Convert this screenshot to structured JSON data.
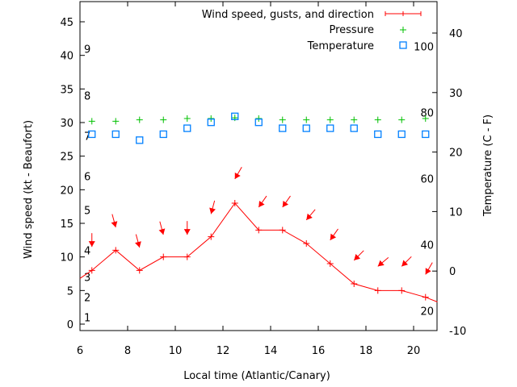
{
  "chart_data": {
    "type": "line",
    "xlabel": "Local time (Atlantic/Canary)",
    "ylabel": "Wind speed (kt - Beaufort)",
    "y2label": "Temperature (C - F)",
    "xlim": [
      6,
      21
    ],
    "ylim": [
      0,
      48
    ],
    "y2lim": [
      -10,
      45
    ],
    "xticks": [
      6,
      8,
      10,
      12,
      14,
      16,
      18,
      20
    ],
    "yticks": [
      0,
      5,
      10,
      15,
      20,
      25,
      30,
      35,
      40,
      45
    ],
    "y2ticks": [
      -10,
      0,
      10,
      20,
      30,
      40
    ],
    "beaufort_labels": [
      {
        "label": "1",
        "kt": 1
      },
      {
        "label": "2",
        "kt": 4
      },
      {
        "label": "3",
        "kt": 7
      },
      {
        "label": "4",
        "kt": 11
      },
      {
        "label": "5",
        "kt": 17
      },
      {
        "label": "6",
        "kt": 22
      },
      {
        "label": "7",
        "kt": 28
      },
      {
        "label": "8",
        "kt": 34
      },
      {
        "label": "9",
        "kt": 41
      }
    ],
    "fahrenheit_labels": [
      {
        "label": "20",
        "f": 20
      },
      {
        "label": "40",
        "f": 40
      },
      {
        "label": "60",
        "f": 60
      },
      {
        "label": "80",
        "f": 80
      },
      {
        "label": "100",
        "f": 100
      }
    ],
    "x": [
      6.5,
      7.5,
      8.5,
      9.5,
      10.5,
      11.5,
      12.5,
      13.5,
      14.5,
      15.5,
      16.5,
      17.5,
      18.5,
      19.5,
      20.5
    ],
    "series": [
      {
        "name": "Wind speed, gusts, and direction",
        "color": "#ff0000",
        "values": [
          8,
          11,
          8,
          10,
          10,
          13,
          18,
          14,
          14,
          12,
          9,
          6,
          5,
          5,
          4
        ],
        "gusts": [
          11.5,
          14.4,
          11.4,
          13.3,
          13.3,
          16.4,
          21.6,
          17.4,
          17.4,
          15.5,
          12.5,
          9.5,
          8.6,
          8.6,
          7.4
        ],
        "direction_deg": [
          0,
          345,
          345,
          345,
          0,
          15,
          30,
          35,
          35,
          40,
          35,
          45,
          50,
          45,
          30
        ],
        "line_start": [
          6,
          6.8
        ],
        "line_end": [
          21,
          3.3
        ]
      },
      {
        "name": "Pressure",
        "color": "#00c000",
        "axis": "y",
        "values": [
          30.2,
          30.2,
          30.4,
          30.4,
          30.6,
          30.6,
          30.7,
          30.6,
          30.4,
          30.4,
          30.4,
          30.4,
          30.4,
          30.4,
          30.6
        ]
      },
      {
        "name": "Temperature",
        "color": "#0080ff",
        "axis": "y2",
        "values": [
          23,
          23,
          22,
          23,
          24,
          25,
          26,
          25,
          24,
          24,
          24,
          24,
          23,
          23,
          23
        ]
      }
    ],
    "legend_position": "top-right",
    "grid": false
  }
}
